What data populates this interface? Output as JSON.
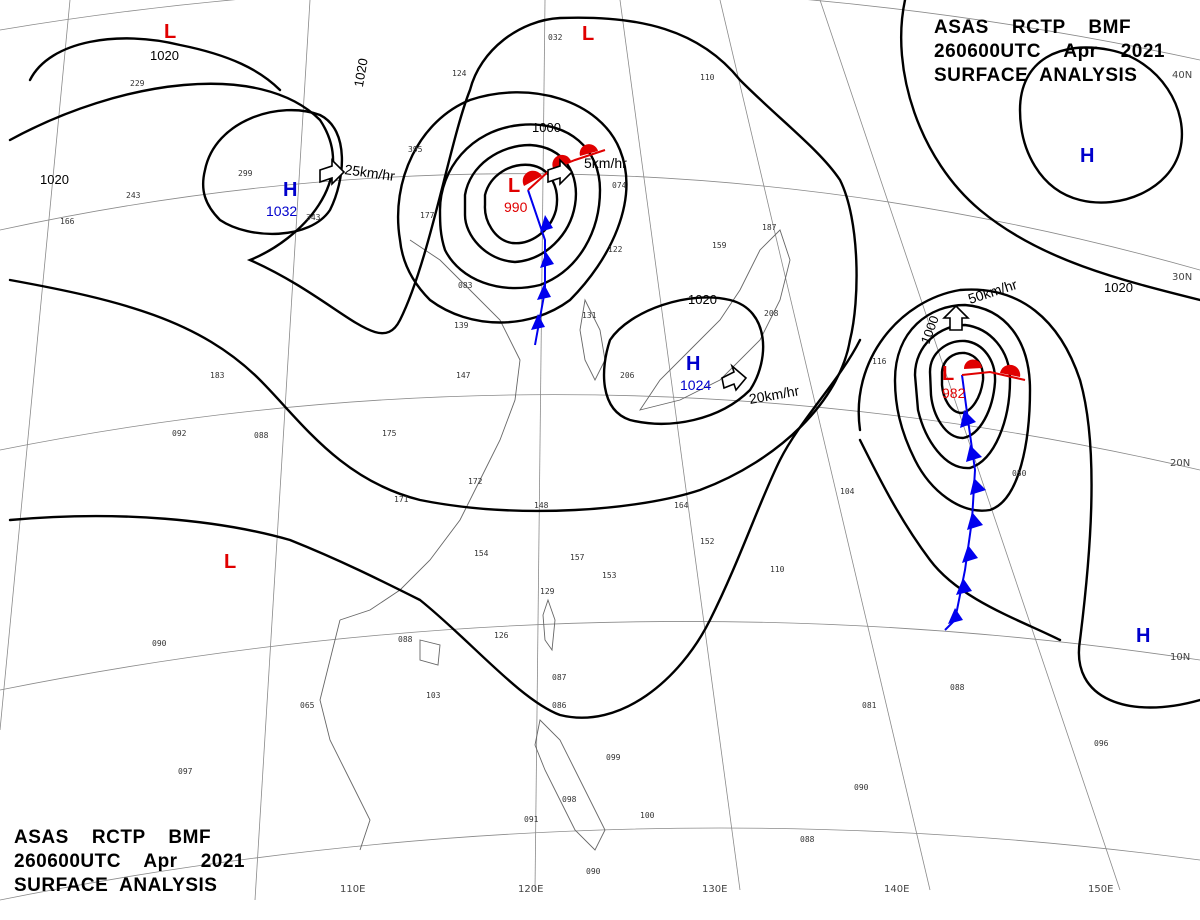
{
  "header": {
    "title_top_lines": [
      "ASAS    RCTP    BMF",
      "260600UTC    Apr    2021",
      "SURFACE  ANALYSIS"
    ],
    "title_bottom_lines": [
      "ASAS    RCTP    BMF",
      "260600UTC    Apr    2021",
      "SURFACE  ANALYSIS"
    ]
  },
  "grid": {
    "latitudes": [
      "40N",
      "30N",
      "20N",
      "10N"
    ],
    "longitudes": [
      "110E",
      "120E",
      "130E",
      "140E",
      "150E"
    ]
  },
  "isobars": {
    "labels": [
      "1020",
      "1020",
      "1020",
      "1000",
      "1020",
      "1020",
      "1000"
    ]
  },
  "pressure_systems": [
    {
      "type": "L",
      "value": "",
      "color": "#e00000"
    },
    {
      "type": "L",
      "value": "",
      "color": "#e00000"
    },
    {
      "type": "H",
      "value": "1032",
      "color": "#0000cc"
    },
    {
      "type": "L",
      "value": "990",
      "color": "#e00000"
    },
    {
      "type": "H",
      "value": "1024",
      "color": "#0000cc"
    },
    {
      "type": "H",
      "value": "",
      "color": "#0000cc"
    },
    {
      "type": "L",
      "value": "982",
      "color": "#e00000"
    },
    {
      "type": "L",
      "value": "",
      "color": "#e00000"
    },
    {
      "type": "H",
      "value": "",
      "color": "#0000cc"
    }
  ],
  "motion_labels": [
    "25km/hr",
    "5km/hr",
    "20km/hr",
    "50km/hr"
  ],
  "stations": [
    "229",
    "299",
    "243",
    "166",
    "343",
    "124",
    "395",
    "177",
    "032",
    "074",
    "122",
    "159",
    "187",
    "110",
    "208",
    "083",
    "139",
    "147",
    "131",
    "206",
    "183",
    "092",
    "088",
    "175",
    "172",
    "171",
    "148",
    "154",
    "157",
    "153",
    "164",
    "152",
    "129",
    "126",
    "088",
    "090",
    "065",
    "103",
    "087",
    "086",
    "099",
    "098",
    "100",
    "091",
    "097",
    "081",
    "088",
    "096",
    "090",
    "088",
    "090",
    "104",
    "050",
    "116",
    "110"
  ],
  "colors": {
    "warm_front": "#e00000",
    "cold_front": "#0000ee",
    "isobar": "#000000",
    "grid": "#999999"
  }
}
